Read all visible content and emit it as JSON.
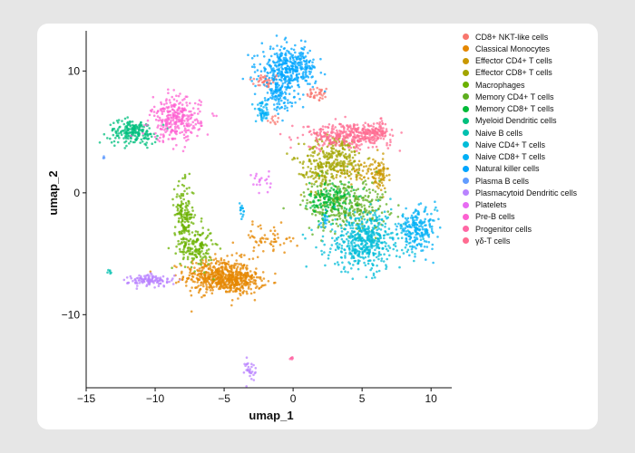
{
  "chart_data": {
    "type": "scatter",
    "xlabel": "umap_1",
    "ylabel": "umap_2",
    "xlim": [
      -15,
      11.5
    ],
    "ylim": [
      -16,
      13.3
    ],
    "xticks": [
      -15,
      -10,
      -5,
      0,
      5,
      10
    ],
    "yticks": [
      -10,
      0,
      10
    ],
    "grid": false,
    "legend_position": "right",
    "series": [
      {
        "name": "CD8+ NKT-like cells",
        "color": "#F8766D",
        "clusters": [
          {
            "x": -2.0,
            "y": 9.2,
            "sx": 0.6,
            "sy": 0.3,
            "n": 40
          },
          {
            "x": 1.8,
            "y": 8.1,
            "sx": 0.4,
            "sy": 0.3,
            "n": 35
          },
          {
            "x": -1.5,
            "y": 6.0,
            "sx": 0.3,
            "sy": 0.2,
            "n": 10
          }
        ]
      },
      {
        "name": "Classical Monocytes",
        "color": "#E58700",
        "clusters": [
          {
            "x": -5.5,
            "y": -6.8,
            "sx": 1.2,
            "sy": 0.7,
            "n": 420
          },
          {
            "x": -4.0,
            "y": -7.3,
            "sx": 0.9,
            "sy": 0.5,
            "n": 220
          },
          {
            "x": -1.8,
            "y": -3.8,
            "sx": 1.1,
            "sy": 0.6,
            "n": 60
          }
        ]
      },
      {
        "name": "Effector CD4+ T cells",
        "color": "#C99800",
        "clusters": [
          {
            "x": 6.2,
            "y": 1.5,
            "sx": 0.35,
            "sy": 0.7,
            "n": 80
          },
          {
            "x": 4.8,
            "y": 1.8,
            "sx": 0.8,
            "sy": 0.5,
            "n": 60
          }
        ]
      },
      {
        "name": "Effector CD8+ T cells",
        "color": "#A3A500",
        "clusters": [
          {
            "x": 3.0,
            "y": 3.0,
            "sx": 1.1,
            "sy": 0.9,
            "n": 240
          },
          {
            "x": 1.8,
            "y": 1.5,
            "sx": 0.6,
            "sy": 0.7,
            "n": 80
          }
        ]
      },
      {
        "name": "Macrophages",
        "color": "#6BB100",
        "clusters": [
          {
            "x": -7.9,
            "y": -1.8,
            "sx": 0.35,
            "sy": 1.3,
            "n": 160
          },
          {
            "x": -7.0,
            "y": -4.5,
            "sx": 0.6,
            "sy": 0.9,
            "n": 150
          }
        ]
      },
      {
        "name": "Memory CD4+ T cells",
        "color": "#5EAE1E",
        "clusters": [
          {
            "x": 3.8,
            "y": -1.0,
            "sx": 1.5,
            "sy": 1.1,
            "n": 320
          }
        ]
      },
      {
        "name": "Memory CD8+ T cells",
        "color": "#00BA38",
        "clusters": [
          {
            "x": 2.8,
            "y": -0.5,
            "sx": 0.8,
            "sy": 0.7,
            "n": 140
          }
        ]
      },
      {
        "name": "Myeloid Dendritic cells",
        "color": "#00BF7D",
        "clusters": [
          {
            "x": -11.6,
            "y": 5.0,
            "sx": 0.9,
            "sy": 0.5,
            "n": 200
          }
        ]
      },
      {
        "name": "Naive B cells",
        "color": "#00C0AF",
        "clusters": [
          {
            "x": -13.3,
            "y": -6.5,
            "sx": 0.1,
            "sy": 0.1,
            "n": 6
          }
        ]
      },
      {
        "name": "Naive CD4+ T cells",
        "color": "#00BCD8",
        "clusters": [
          {
            "x": 5.2,
            "y": -4.0,
            "sx": 1.4,
            "sy": 1.2,
            "n": 500
          }
        ]
      },
      {
        "name": "Naive CD8+ T cells",
        "color": "#00B0F6",
        "clusters": [
          {
            "x": 9.0,
            "y": -3.0,
            "sx": 0.7,
            "sy": 0.8,
            "n": 200
          },
          {
            "x": -2.2,
            "y": 6.6,
            "sx": 0.25,
            "sy": 0.4,
            "n": 50
          },
          {
            "x": -3.7,
            "y": -1.5,
            "sx": 0.1,
            "sy": 0.35,
            "n": 15
          },
          {
            "x": 2.3,
            "y": -2.3,
            "sx": 0.2,
            "sy": 0.3,
            "n": 15
          }
        ]
      },
      {
        "name": "Natural killer cells",
        "color": "#00A5FF",
        "clusters": [
          {
            "x": -0.3,
            "y": 10.2,
            "sx": 1.0,
            "sy": 0.9,
            "n": 380
          },
          {
            "x": -1.1,
            "y": 8.2,
            "sx": 0.5,
            "sy": 0.7,
            "n": 100
          }
        ]
      },
      {
        "name": "Plasma B cells",
        "color": "#619CFF",
        "clusters": [
          {
            "x": -13.8,
            "y": 2.9,
            "sx": 0.06,
            "sy": 0.06,
            "n": 4
          }
        ]
      },
      {
        "name": "Plasmacytoid Dendritic cells",
        "color": "#B983FF",
        "clusters": [
          {
            "x": -10.3,
            "y": -7.2,
            "sx": 0.8,
            "sy": 0.25,
            "n": 120
          },
          {
            "x": -3.1,
            "y": -14.5,
            "sx": 0.2,
            "sy": 0.5,
            "n": 30
          }
        ]
      },
      {
        "name": "Platelets",
        "color": "#E76BF3",
        "clusters": [
          {
            "x": -2.3,
            "y": 0.9,
            "sx": 0.35,
            "sy": 0.5,
            "n": 20
          }
        ]
      },
      {
        "name": "Pre-B cells",
        "color": "#FD61D1",
        "clusters": [
          {
            "x": -8.5,
            "y": 6.0,
            "sx": 0.9,
            "sy": 0.9,
            "n": 300
          }
        ]
      },
      {
        "name": "Progenitor cells",
        "color": "#FF67A4",
        "clusters": [
          {
            "x": -0.1,
            "y": -13.6,
            "sx": 0.12,
            "sy": 0.08,
            "n": 6
          }
        ]
      },
      {
        "name": "γδ-T cells",
        "color": "#FF6C91",
        "clusters": [
          {
            "x": 4.0,
            "y": 4.7,
            "sx": 1.6,
            "sy": 0.5,
            "n": 320
          },
          {
            "x": 6.0,
            "y": 5.1,
            "sx": 0.5,
            "sy": 0.4,
            "n": 80
          }
        ]
      }
    ]
  }
}
